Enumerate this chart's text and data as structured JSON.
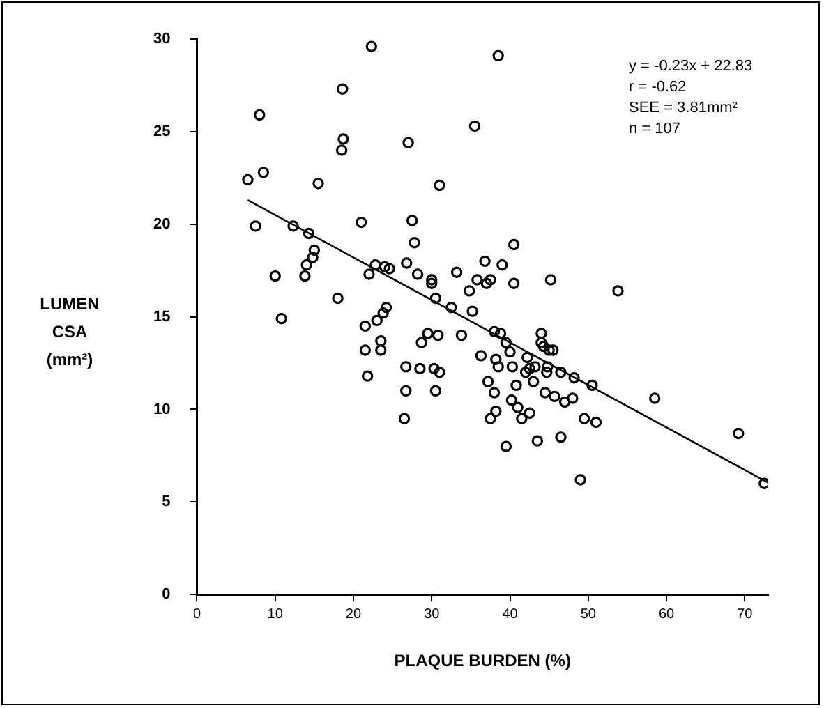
{
  "chart_data": {
    "type": "scatter",
    "xlabel": "PLAQUE BURDEN (%)",
    "ylabel": "LUMEN CSA (mm²)",
    "xlim": [
      0,
      73
    ],
    "ylim": [
      0,
      30
    ],
    "xticks": [
      0,
      10,
      20,
      30,
      40,
      50,
      60,
      70
    ],
    "yticks": [
      0,
      5,
      10,
      15,
      20,
      25,
      30
    ],
    "grid": false,
    "legend": false,
    "marker": "circle",
    "annotations": [
      "y = -0.23x + 22.83",
      "r = -0.62",
      "SEE = 3.81mm²",
      "n = 107"
    ],
    "series": [
      {
        "color": "#000000",
        "x": [
          6.5,
          8,
          8.5,
          7.5,
          10,
          10.8,
          12.3,
          13.8,
          14,
          14.3,
          14.8,
          15,
          15.5,
          18,
          18.5,
          18.7,
          18.6,
          21,
          21.5,
          21.5,
          21.8,
          22,
          22.3,
          22.8,
          23,
          23.5,
          23.5,
          23.8,
          24,
          24.2,
          24.6,
          26.5,
          26.7,
          26.7,
          26.8,
          27,
          27.5,
          27.8,
          28.2,
          28.5,
          28.7,
          29.5,
          30,
          30,
          30.3,
          30.5,
          30.8,
          31,
          30.5,
          31,
          32.5,
          33.2,
          33.8,
          34.8,
          35.2,
          35.5,
          35.8,
          36.3,
          36.8,
          37,
          37.2,
          37.5,
          37.5,
          38,
          38.2,
          38,
          38.2,
          38.5,
          38.8,
          38.5,
          39,
          39.5,
          39.5,
          40,
          40.5,
          40.5,
          40.3,
          40.2,
          40.8,
          41,
          41.5,
          42,
          42.2,
          42.5,
          42.5,
          43,
          43.2,
          43.5,
          44,
          44,
          44.5,
          44.7,
          44.3,
          44.8,
          45.2,
          45,
          45.5,
          45.7,
          46.5,
          46.5,
          47,
          48.2,
          48,
          49,
          49.5,
          50.5,
          51,
          53.8,
          58.5,
          69.2,
          72.5
        ],
        "values": [
          22.4,
          25.9,
          22.8,
          19.9,
          17.2,
          14.9,
          19.9,
          17.2,
          17.8,
          19.5,
          18.2,
          18.6,
          22.2,
          16,
          24,
          24.6,
          27.3,
          20.1,
          14.5,
          13.2,
          11.8,
          17.3,
          29.6,
          17.8,
          14.8,
          13.2,
          13.7,
          15.2,
          17.7,
          15.5,
          17.6,
          9.5,
          12.3,
          11,
          17.9,
          24.4,
          20.2,
          19,
          17.3,
          12.2,
          13.6,
          14.1,
          17,
          16.8,
          12.2,
          16,
          14,
          22.1,
          11,
          12,
          15.5,
          17.4,
          14,
          16.4,
          15.3,
          25.3,
          17,
          12.9,
          18,
          16.8,
          11.5,
          9.5,
          17,
          14.2,
          12.7,
          10.9,
          9.9,
          29.1,
          14.1,
          12.3,
          17.8,
          8,
          13.6,
          13.1,
          18.9,
          16.8,
          12.3,
          10.5,
          11.3,
          10.1,
          9.5,
          12,
          12.8,
          12.2,
          9.8,
          11.5,
          12.3,
          8.3,
          13.6,
          14.1,
          10.9,
          12,
          13.4,
          12.3,
          17,
          13.2,
          13.2,
          10.7,
          12,
          8.5,
          10.4,
          11.7,
          10.6,
          6.2,
          9.5,
          11.3,
          9.3,
          16.4,
          10.6,
          8.7,
          6
        ]
      },
      {
        "type": "line",
        "color": "#000000",
        "marker": "none",
        "x": [
          6.5,
          73
        ],
        "values": [
          21.3,
          6.04
        ]
      }
    ]
  }
}
